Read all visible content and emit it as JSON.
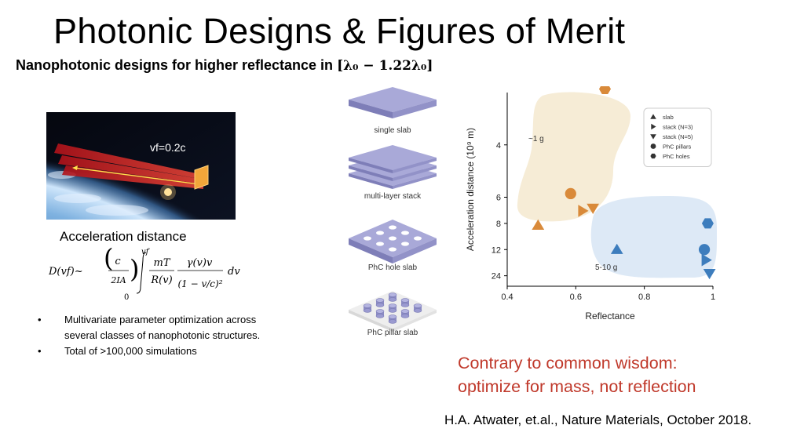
{
  "slide": {
    "title": "Photonic Designs & Figures of Merit",
    "subtitle_text": "Nanophotonic designs for higher reflectance in",
    "subtitle_math": "[λ₀ − 1.22λ₀]",
    "velocity_label": "vf=0.2c",
    "accel_label": "Acceleration distance",
    "formula": {
      "lhs": "D(vf)~",
      "frac1_num": "c",
      "frac1_den": "2IA",
      "int_upper": "vf",
      "int_lower": "0",
      "frac2_num": "mT",
      "frac2_den": "R(v)",
      "frac3_num": "γ(v)v",
      "frac3_den": "(1 − v/c)²",
      "tail": "dv"
    },
    "bullets": [
      "Multivariate parameter optimization across several classes of nanophotonic structures.",
      "Total of >100,000 simulations"
    ],
    "designs": [
      {
        "label": "single slab"
      },
      {
        "label": "multi-layer stack"
      },
      {
        "label": "PhC hole slab"
      },
      {
        "label": "PhC pillar slab"
      }
    ],
    "conclusion": [
      "Contrary to common wisdom:",
      "optimize for mass, not reflection"
    ],
    "citation": "H.A. Atwater, et.al., Nature Materials, October 2018."
  },
  "chart_data": {
    "type": "scatter",
    "xlabel": "Reflectance",
    "ylabel": "Acceleration distance (10⁹ m)",
    "xlim": [
      0.4,
      1.0
    ],
    "x_ticks": [
      0.4,
      0.6,
      0.8,
      1
    ],
    "x_tick_labels": [
      "0.4",
      "0.6",
      "0.8",
      "1"
    ],
    "y_ticks": [
      4,
      6,
      8,
      12,
      24
    ],
    "y_tick_labels": [
      "4",
      "6",
      "8",
      "12",
      "24"
    ],
    "y_scale": "reciprocal",
    "legend_position": "top-right",
    "legend": [
      "slab",
      "stack (N=3)",
      "stack (N=5)",
      "PhC pillars",
      "PhC holes"
    ],
    "region_labels": [
      "~1 g",
      "5-10 g"
    ],
    "colors": {
      "orange": "#d98a3a",
      "blue": "#3d7dbd",
      "orange_region": "#f6ecd6",
      "blue_region": "#dde9f6"
    },
    "series": [
      {
        "name": "slab",
        "marker": "triangle-up",
        "x": [
          0.49,
          0.72
        ],
        "y": [
          8.2,
          12
        ]
      },
      {
        "name": "stack (N=3)",
        "marker": "triangle-right",
        "x": [
          0.62,
          0.98
        ],
        "y": [
          6.9,
          15
        ]
      },
      {
        "name": "stack (N=5)",
        "marker": "triangle-down",
        "x": [
          0.65,
          0.99
        ],
        "y": [
          6.7,
          22
        ]
      },
      {
        "name": "PhC pillars",
        "marker": "circle",
        "x": [
          0.585,
          0.975
        ],
        "y": [
          5.8,
          12
        ]
      },
      {
        "name": "PhC holes",
        "marker": "hexagon",
        "x": [
          0.685,
          0.985
        ],
        "y": [
          2.95,
          8
        ]
      }
    ]
  }
}
